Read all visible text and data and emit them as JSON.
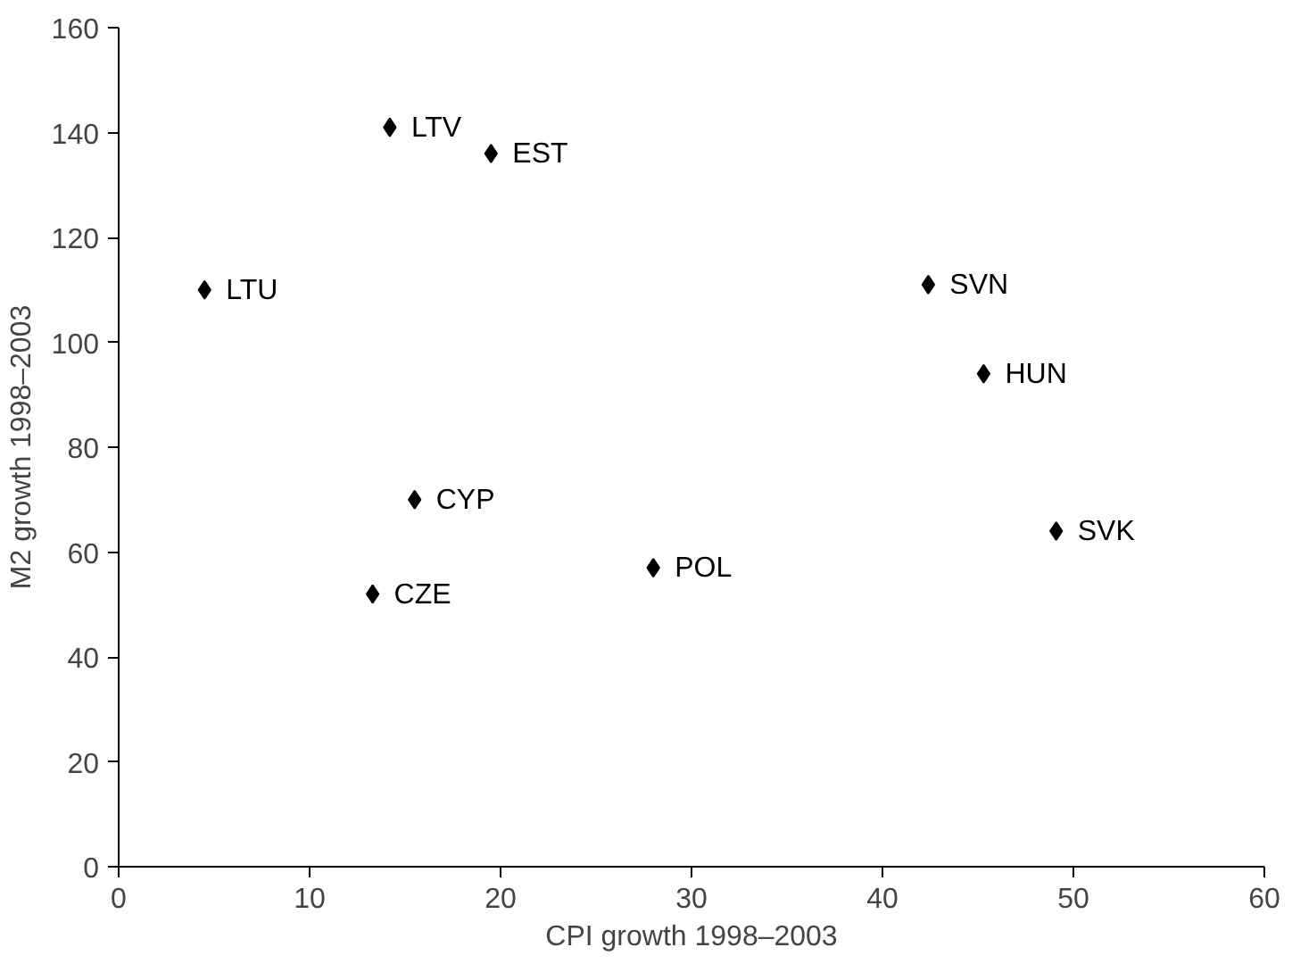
{
  "chart_data": {
    "type": "scatter",
    "xlabel": "CPI growth 1998–2003",
    "ylabel": "M2 growth 1998–2003",
    "x": [
      4.5,
      14.2,
      19.5,
      42.4,
      45.3,
      49.1,
      15.5,
      13.3,
      28.0
    ],
    "values": [
      110,
      141,
      136,
      111,
      94,
      64,
      70,
      52,
      57
    ],
    "color": "#000000",
    "marker": "diamond",
    "xlim": [
      0,
      60
    ],
    "xticks": [
      0,
      10,
      20,
      30,
      40,
      50,
      60
    ],
    "ylim": [
      0,
      160
    ],
    "yticks": [
      0,
      20,
      40,
      60,
      80,
      100,
      120,
      140,
      160
    ],
    "grid": false,
    "annotations": [
      {
        "text": "LTU",
        "x": 4.5,
        "y": 110
      },
      {
        "text": "LTV",
        "x": 14.2,
        "y": 141
      },
      {
        "text": "EST",
        "x": 19.5,
        "y": 136
      },
      {
        "text": "SVN",
        "x": 42.4,
        "y": 111
      },
      {
        "text": "HUN",
        "x": 45.3,
        "y": 94
      },
      {
        "text": "SVK",
        "x": 49.1,
        "y": 64
      },
      {
        "text": "CYP",
        "x": 15.5,
        "y": 70
      },
      {
        "text": "CZE",
        "x": 13.3,
        "y": 52
      },
      {
        "text": "POL",
        "x": 28.0,
        "y": 57
      }
    ]
  }
}
